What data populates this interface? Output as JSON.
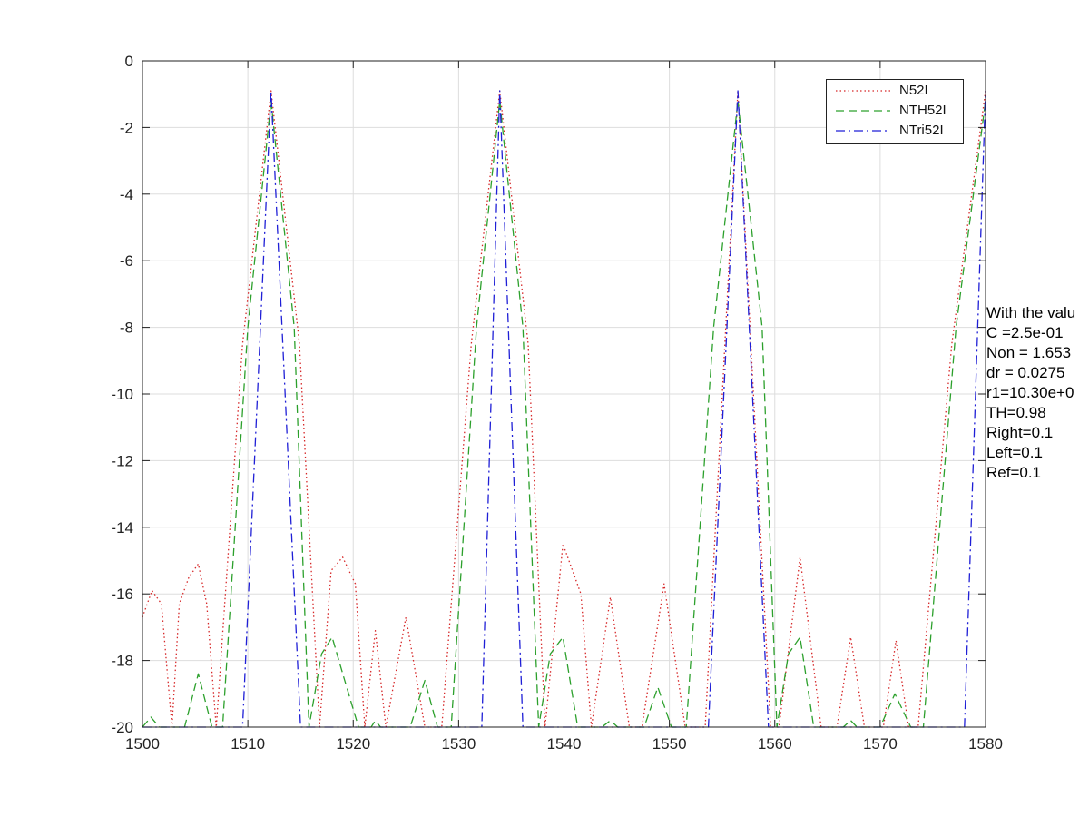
{
  "chart_data": {
    "type": "line",
    "title": "",
    "xlabel": "",
    "ylabel": "",
    "xlim": [
      1500,
      1580
    ],
    "ylim": [
      -20,
      0
    ],
    "x_ticks": [
      "1500",
      "1510",
      "1520",
      "1530",
      "1540",
      "1550",
      "1560",
      "1570",
      "1580"
    ],
    "y_ticks": [
      "0",
      "-2",
      "-4",
      "-6",
      "-8",
      "-10",
      "-12",
      "-14",
      "-16",
      "-18",
      "-20"
    ],
    "grid": true,
    "legend_position": "top-right",
    "series": [
      {
        "name": "N52I",
        "color": "#d62728",
        "dash": "dotted",
        "x": [
          1500,
          1500.9,
          1501.8,
          1502.8,
          1503.5,
          1504.4,
          1505.3,
          1506.1,
          1507,
          1509.5,
          1512.2,
          1514.9,
          1516.8,
          1517.9,
          1519.0,
          1520.2,
          1521.1,
          1522.1,
          1523.1,
          1525.0,
          1526.8,
          1528.4,
          1531.2,
          1533.9,
          1536.6,
          1538.2,
          1539.9,
          1541.6,
          1542.6,
          1544.4,
          1546.2,
          1547.4,
          1549.5,
          1551.5,
          1553.4,
          1556.5,
          1559.6,
          1560.4,
          1562.4,
          1564.4,
          1565.9,
          1567.2,
          1568.5,
          1570.3,
          1571.5,
          1572.7,
          1573.6,
          1576.8,
          1580
        ],
        "y": [
          -16.7,
          -15.9,
          -16.3,
          -20,
          -16.3,
          -15.5,
          -15.1,
          -16.3,
          -20,
          -8.5,
          -0.9,
          -8.5,
          -20,
          -15.3,
          -14.9,
          -15.7,
          -20,
          -17.1,
          -20,
          -16.7,
          -20,
          -20,
          -8.5,
          -0.9,
          -8.5,
          -20,
          -14.5,
          -16.0,
          -20,
          -16.1,
          -20,
          -20,
          -15.7,
          -20,
          -20,
          -0.9,
          -20,
          -20,
          -14.9,
          -20,
          -20,
          -17.3,
          -20,
          -20,
          -17.4,
          -20,
          -20,
          -8.5,
          -0.9
        ]
      },
      {
        "name": "NTH52I",
        "color": "#2ca02c",
        "dash": "dashed",
        "x": [
          1500,
          1500.8,
          1501.6,
          1504.0,
          1505.3,
          1506.6,
          1507.6,
          1510.0,
          1512.2,
          1514.4,
          1515.8,
          1517.0,
          1518.0,
          1519.1,
          1520.5,
          1521.7,
          1522.1,
          1522.6,
          1525.4,
          1526.8,
          1528.0,
          1529.3,
          1531.7,
          1533.9,
          1536.1,
          1537.6,
          1538.7,
          1539.9,
          1541.3,
          1543.6,
          1544.4,
          1545.1,
          1547.6,
          1548.9,
          1550.2,
          1551.6,
          1554.2,
          1556.5,
          1558.8,
          1560.2,
          1561.3,
          1562.4,
          1563.7,
          1566.5,
          1567.2,
          1567.8,
          1570.0,
          1571.4,
          1572.9,
          1574.1,
          1577.2,
          1580
        ],
        "y": [
          -20,
          -19.7,
          -20,
          -20,
          -18.4,
          -20,
          -20,
          -8,
          -1.2,
          -8,
          -20,
          -17.8,
          -17.3,
          -18.5,
          -20,
          -20,
          -19.8,
          -20,
          -20,
          -18.6,
          -20,
          -20,
          -8,
          -1.2,
          -8,
          -20,
          -17.8,
          -17.3,
          -20,
          -20,
          -19.8,
          -20,
          -20,
          -18.8,
          -20,
          -20,
          -8,
          -1.2,
          -8,
          -20,
          -17.8,
          -17.3,
          -20,
          -20,
          -19.8,
          -20,
          -20,
          -19.0,
          -20,
          -20,
          -8,
          -1.2
        ]
      },
      {
        "name": "NTri52I",
        "color": "#1f1fd6",
        "dash": "dashdot",
        "x": [
          1500,
          1509.5,
          1512.2,
          1515.0,
          1532.2,
          1533.9,
          1536.1,
          1553.7,
          1556.5,
          1559.4,
          1578.0,
          1580
        ],
        "y": [
          -20,
          -20,
          -0.9,
          -20,
          -20,
          -0.9,
          -20,
          -20,
          -0.9,
          -20,
          -20,
          -0.9
        ]
      }
    ],
    "annotation": [
      "With the valu",
      "C =2.5e-01",
      "Non = 1.653",
      "dr = 0.0275",
      "r1=10.30e+0",
      "TH=0.98",
      "Right=0.1",
      "Left=0.1",
      "Ref=0.1"
    ]
  }
}
